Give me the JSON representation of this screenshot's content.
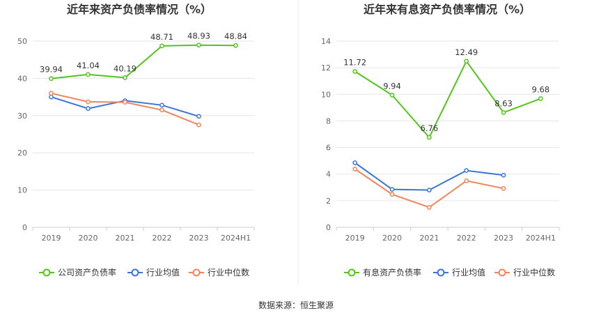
{
  "source": "数据来源：恒生聚源",
  "colors": {
    "green": "#52c41a",
    "blue": "#3a75d6",
    "orange": "#f0845c",
    "grid": "#e6e6e6",
    "axis": "#cccccc",
    "divider": "#eeeeee"
  },
  "chart_data": [
    {
      "type": "line",
      "title": "近年来资产负债率情况（%）",
      "categories": [
        "2019",
        "2020",
        "2021",
        "2022",
        "2023",
        "2024H1"
      ],
      "ylim": [
        0,
        50
      ],
      "yticks": [
        0,
        10,
        20,
        30,
        40,
        50
      ],
      "grid": true,
      "legend_position": "bottom",
      "series": [
        {
          "name": "公司资产负债率",
          "color": "green",
          "labeled": true,
          "values": [
            39.94,
            41.04,
            40.19,
            48.71,
            48.93,
            48.84
          ]
        },
        {
          "name": "行业均值",
          "color": "blue",
          "labeled": false,
          "values": [
            35.0,
            31.9,
            34.0,
            32.8,
            29.8,
            null
          ]
        },
        {
          "name": "行业中位数",
          "color": "orange",
          "labeled": false,
          "values": [
            36.0,
            33.7,
            33.6,
            31.5,
            27.5,
            null
          ]
        }
      ]
    },
    {
      "type": "line",
      "title": "近年来有息资产负债率情况（%）",
      "categories": [
        "2019",
        "2020",
        "2021",
        "2022",
        "2023",
        "2024H1"
      ],
      "ylim": [
        0,
        14
      ],
      "yticks": [
        0,
        2,
        4,
        6,
        8,
        10,
        12,
        14
      ],
      "grid": true,
      "legend_position": "bottom",
      "series": [
        {
          "name": "有息资产负债率",
          "color": "green",
          "labeled": true,
          "values": [
            11.72,
            9.94,
            6.76,
            12.49,
            8.63,
            9.68
          ]
        },
        {
          "name": "行业均值",
          "color": "blue",
          "labeled": false,
          "values": [
            4.85,
            2.85,
            2.8,
            4.27,
            3.92,
            null
          ]
        },
        {
          "name": "行业中位数",
          "color": "orange",
          "labeled": false,
          "values": [
            4.38,
            2.48,
            1.5,
            3.5,
            2.92,
            null
          ]
        }
      ]
    }
  ]
}
